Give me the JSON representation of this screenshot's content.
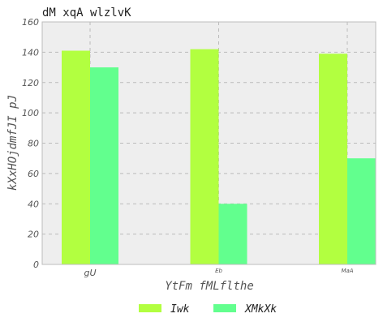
{
  "chart_data": {
    "type": "bar",
    "title": "dM xqA wlzlvK",
    "xlabel": "YtFm fMLflthe",
    "ylabel": "kXxHOjdmfJI pJ",
    "categories": [
      "gU",
      "Eb",
      "MaA"
    ],
    "series": [
      {
        "name": "Iwk",
        "values": [
          141,
          142,
          139
        ],
        "color": "#b2ff40"
      },
      {
        "name": "XMkXk",
        "values": [
          130,
          40,
          70
        ],
        "color": "#62ff8e"
      }
    ],
    "ylim": [
      0,
      160
    ],
    "yticks": [
      0,
      20,
      40,
      60,
      80,
      100,
      120,
      140,
      160
    ],
    "grid": true,
    "legend_position": "bottom",
    "plot_background": "#eeeeee",
    "grid_color": "#bbbbbb"
  }
}
